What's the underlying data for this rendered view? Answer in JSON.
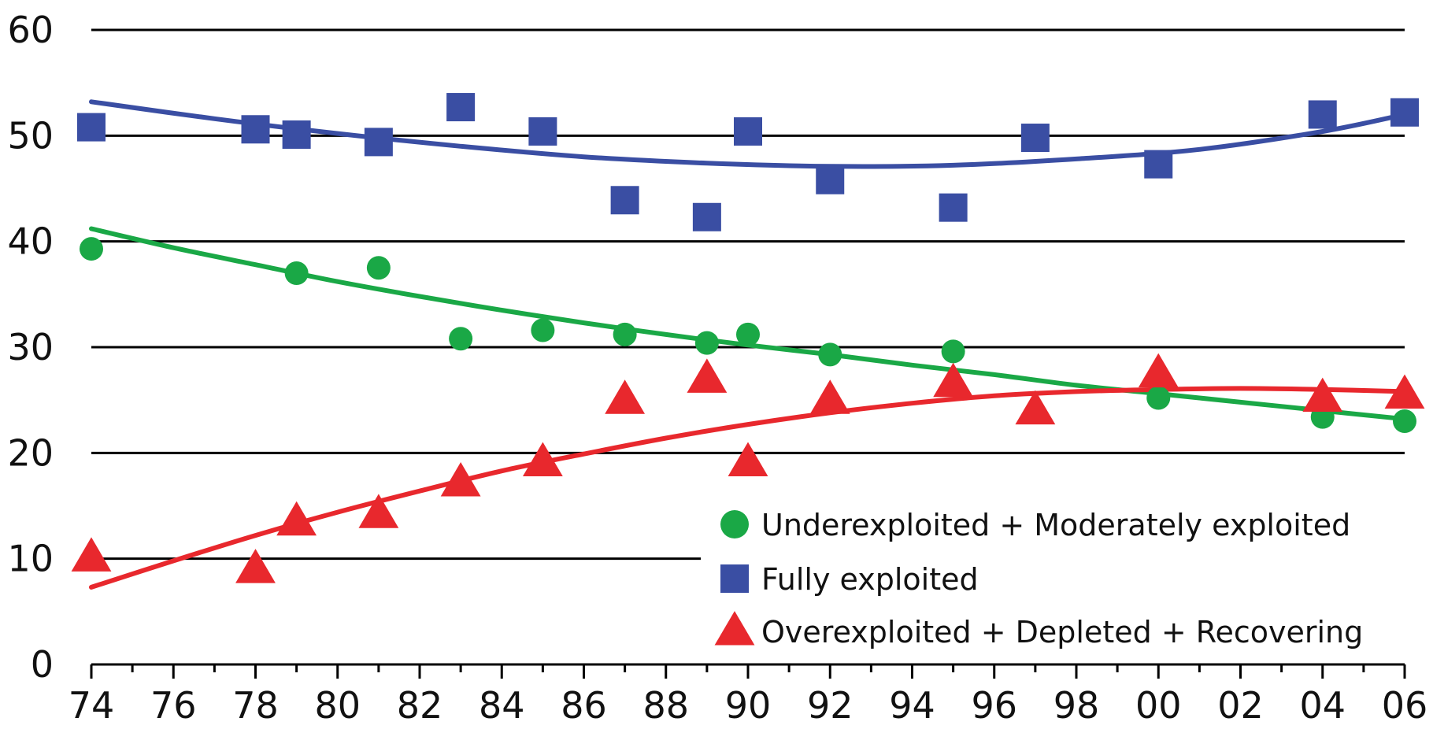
{
  "chart_data": {
    "type": "scatter",
    "title": "",
    "xlabel": "",
    "ylabel": "",
    "xlim": [
      1974,
      2006
    ],
    "ylim": [
      0,
      60
    ],
    "yticks": [
      0,
      10,
      20,
      30,
      40,
      50,
      60
    ],
    "xticks": [
      {
        "value": 1974,
        "label": "74"
      },
      {
        "value": 1976,
        "label": "76"
      },
      {
        "value": 1978,
        "label": "78"
      },
      {
        "value": 1980,
        "label": "80"
      },
      {
        "value": 1982,
        "label": "82"
      },
      {
        "value": 1984,
        "label": "84"
      },
      {
        "value": 1986,
        "label": "86"
      },
      {
        "value": 1988,
        "label": "88"
      },
      {
        "value": 1990,
        "label": "90"
      },
      {
        "value": 1992,
        "label": "92"
      },
      {
        "value": 1994,
        "label": "94"
      },
      {
        "value": 1996,
        "label": "96"
      },
      {
        "value": 1998,
        "label": "98"
      },
      {
        "value": 2000,
        "label": "00"
      },
      {
        "value": 2002,
        "label": "02"
      },
      {
        "value": 2004,
        "label": "04"
      },
      {
        "value": 2006,
        "label": "06"
      }
    ],
    "grid": "horizontal",
    "legend_position": "bottom-right",
    "series": [
      {
        "name": "Underexploited + Moderately exploited",
        "marker": "circle",
        "color": "#1aa846",
        "points": [
          [
            1974,
            39.3
          ],
          [
            1979,
            37.0
          ],
          [
            1981,
            37.5
          ],
          [
            1983,
            30.8
          ],
          [
            1985,
            31.6
          ],
          [
            1987,
            31.2
          ],
          [
            1989,
            30.4
          ],
          [
            1990,
            31.2
          ],
          [
            1992,
            29.3
          ],
          [
            1995,
            29.6
          ],
          [
            2000,
            25.2
          ],
          [
            2004,
            23.4
          ],
          [
            2006,
            23.0
          ]
        ],
        "trend": [
          [
            1974,
            41.2
          ],
          [
            1976,
            39.4
          ],
          [
            1978,
            37.8
          ],
          [
            1980,
            36.2
          ],
          [
            1982,
            34.8
          ],
          [
            1984,
            33.5
          ],
          [
            1986,
            32.3
          ],
          [
            1988,
            31.2
          ],
          [
            1990,
            30.2
          ],
          [
            1992,
            29.3
          ],
          [
            1994,
            28.3
          ],
          [
            1996,
            27.4
          ],
          [
            1998,
            26.4
          ],
          [
            2000,
            25.6
          ],
          [
            2002,
            24.8
          ],
          [
            2004,
            24.0
          ],
          [
            2006,
            23.2
          ]
        ]
      },
      {
        "name": "Fully exploited",
        "marker": "square",
        "color": "#3a4ea3",
        "points": [
          [
            1974,
            50.8
          ],
          [
            1978,
            50.6
          ],
          [
            1979,
            50.1
          ],
          [
            1981,
            49.4
          ],
          [
            1983,
            52.7
          ],
          [
            1985,
            50.4
          ],
          [
            1987,
            43.9
          ],
          [
            1989,
            42.3
          ],
          [
            1990,
            50.4
          ],
          [
            1992,
            45.8
          ],
          [
            1995,
            43.2
          ],
          [
            1997,
            49.8
          ],
          [
            2000,
            47.3
          ],
          [
            2004,
            52.0
          ],
          [
            2006,
            52.2
          ]
        ],
        "trend": [
          [
            1974,
            53.2
          ],
          [
            1977,
            51.6
          ],
          [
            1980,
            50.2
          ],
          [
            1983,
            49.0
          ],
          [
            1986,
            48.0
          ],
          [
            1989,
            47.4
          ],
          [
            1992,
            47.1
          ],
          [
            1995,
            47.2
          ],
          [
            1998,
            47.8
          ],
          [
            2001,
            48.7
          ],
          [
            2004,
            50.4
          ],
          [
            2006,
            52.0
          ]
        ]
      },
      {
        "name": "Overexploited + Depleted + Recovering",
        "marker": "triangle",
        "color": "#e8282d",
        "points": [
          [
            1974,
            10.1
          ],
          [
            1978,
            9.0
          ],
          [
            1979,
            13.5
          ],
          [
            1981,
            14.2
          ],
          [
            1983,
            17.2
          ],
          [
            1985,
            19.1
          ],
          [
            1987,
            25.0
          ],
          [
            1989,
            27.0
          ],
          [
            1990,
            19.1
          ],
          [
            1992,
            25.0
          ],
          [
            1995,
            26.6
          ],
          [
            1997,
            24.0
          ],
          [
            2000,
            27.5
          ],
          [
            2004,
            25.2
          ],
          [
            2006,
            25.5
          ]
        ],
        "trend": [
          [
            1974,
            7.3
          ],
          [
            1976,
            9.8
          ],
          [
            1978,
            12.2
          ],
          [
            1980,
            14.4
          ],
          [
            1982,
            16.4
          ],
          [
            1984,
            18.3
          ],
          [
            1986,
            19.9
          ],
          [
            1988,
            21.4
          ],
          [
            1990,
            22.7
          ],
          [
            1992,
            23.8
          ],
          [
            1994,
            24.7
          ],
          [
            1996,
            25.4
          ],
          [
            1998,
            25.8
          ],
          [
            2000,
            26.0
          ],
          [
            2002,
            26.1
          ],
          [
            2004,
            26.0
          ],
          [
            2006,
            25.8
          ]
        ]
      }
    ]
  }
}
